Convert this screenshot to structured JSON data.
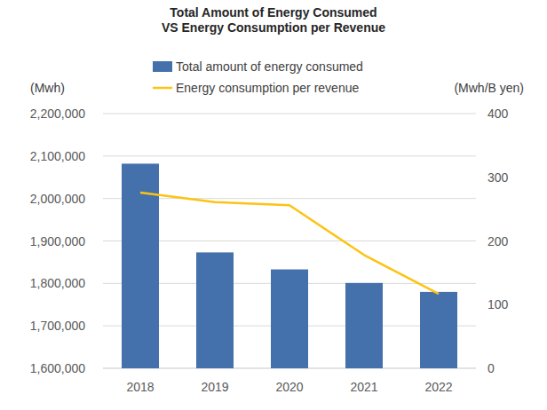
{
  "chart_data": {
    "type": "bar",
    "title": "Total Amount of Energy Consumed\nVS Energy Consumption per Revenue",
    "ylabel": "(Mwh)",
    "y2label": "(Mwh/B yen)",
    "categories": [
      "2018",
      "2019",
      "2020",
      "2021",
      "2022"
    ],
    "series": [
      {
        "name": "Total amount of energy consumed",
        "type": "bar",
        "color": "#4470ab",
        "values": [
          2082000,
          1873000,
          1833000,
          1801000,
          1780000
        ]
      },
      {
        "name": "Energy consumption per revenue",
        "type": "line",
        "color": "#fcc314",
        "axis": "y2",
        "values": [
          276,
          261,
          256,
          178,
          117
        ]
      }
    ],
    "ylim": [
      1600000,
      2200000
    ],
    "yticks": [
      {
        "value": 1600000,
        "label": "1,600,000"
      },
      {
        "value": 1700000,
        "label": "1,700,000"
      },
      {
        "value": 1800000,
        "label": "1,800,000"
      },
      {
        "value": 1900000,
        "label": "1,900,000"
      },
      {
        "value": 2000000,
        "label": "2,000,000"
      },
      {
        "value": 2100000,
        "label": "2,100,000"
      },
      {
        "value": 2200000,
        "label": "2,200,000"
      }
    ],
    "y2lim": [
      0,
      400
    ],
    "y2ticks": [
      0,
      100,
      200,
      300,
      400
    ],
    "grid": true,
    "legend": "top"
  }
}
